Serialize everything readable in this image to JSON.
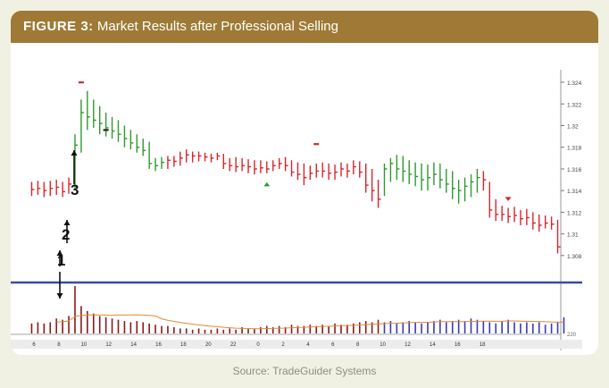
{
  "figure": {
    "label": "FIGURE 3:",
    "title": "Market Results after Professional Selling",
    "source": "Source: TradeGuider Systems"
  },
  "annotations": {
    "a1": "1",
    "a2": "2",
    "a3": "3"
  },
  "colors": {
    "header": "#9e7a36",
    "up": "#2e9a2e",
    "down": "#d9242c",
    "volume_high": "#8b1a1a",
    "volume_blue": "#3a3ab8",
    "divider": "#3b4aa8",
    "average": "#e08a3a"
  },
  "chart_data": {
    "type": "ohlc-bar",
    "y_ticks": [
      "1.308",
      "1.31",
      "1.312",
      "1.314",
      "1.316",
      "1.318",
      "1.32",
      "1.322",
      "1.324"
    ],
    "ylim": [
      1.3065,
      1.3245
    ],
    "x_ticks": [
      "6",
      "8",
      "10",
      "12",
      "14",
      "16",
      "18",
      "20",
      "22",
      "0",
      "2",
      "4",
      "6",
      "8",
      "10",
      "12",
      "14",
      "16",
      "18"
    ],
    "volume_tick": "220",
    "bars": [
      {
        "h": 1.3148,
        "l": 1.3135,
        "c": 1.3141,
        "d": "dn"
      },
      {
        "h": 1.3149,
        "l": 1.3136,
        "c": 1.3142,
        "d": "dn"
      },
      {
        "h": 1.3148,
        "l": 1.3134,
        "c": 1.314,
        "d": "dn"
      },
      {
        "h": 1.3149,
        "l": 1.3135,
        "c": 1.3142,
        "d": "dn"
      },
      {
        "h": 1.315,
        "l": 1.3136,
        "c": 1.3143,
        "d": "dn"
      },
      {
        "h": 1.3148,
        "l": 1.3134,
        "c": 1.3139,
        "d": "dn"
      },
      {
        "h": 1.3152,
        "l": 1.3137,
        "c": 1.3146,
        "d": "dn"
      },
      {
        "h": 1.3192,
        "l": 1.3142,
        "c": 1.3182,
        "d": "up"
      },
      {
        "h": 1.3224,
        "l": 1.3175,
        "c": 1.3212,
        "d": "up"
      },
      {
        "h": 1.3232,
        "l": 1.3196,
        "c": 1.3208,
        "d": "up"
      },
      {
        "h": 1.3224,
        "l": 1.3198,
        "c": 1.3205,
        "d": "up"
      },
      {
        "h": 1.3218,
        "l": 1.3192,
        "c": 1.3202,
        "d": "up"
      },
      {
        "h": 1.3212,
        "l": 1.319,
        "c": 1.3198,
        "d": "up"
      },
      {
        "h": 1.3208,
        "l": 1.3188,
        "c": 1.3195,
        "d": "up"
      },
      {
        "h": 1.3205,
        "l": 1.3185,
        "c": 1.3192,
        "d": "up"
      },
      {
        "h": 1.32,
        "l": 1.318,
        "c": 1.3188,
        "d": "up"
      },
      {
        "h": 1.3196,
        "l": 1.3178,
        "c": 1.3184,
        "d": "up"
      },
      {
        "h": 1.3192,
        "l": 1.3175,
        "c": 1.318,
        "d": "up"
      },
      {
        "h": 1.3188,
        "l": 1.3172,
        "c": 1.3177,
        "d": "up"
      },
      {
        "h": 1.3185,
        "l": 1.316,
        "c": 1.3165,
        "d": "up"
      },
      {
        "h": 1.317,
        "l": 1.3158,
        "c": 1.3163,
        "d": "up"
      },
      {
        "h": 1.3171,
        "l": 1.316,
        "c": 1.3166,
        "d": "up"
      },
      {
        "h": 1.3172,
        "l": 1.316,
        "c": 1.3168,
        "d": "dn"
      },
      {
        "h": 1.3172,
        "l": 1.3162,
        "c": 1.3167,
        "d": "dn"
      },
      {
        "h": 1.3176,
        "l": 1.3163,
        "c": 1.317,
        "d": "dn"
      },
      {
        "h": 1.3178,
        "l": 1.3166,
        "c": 1.3173,
        "d": "dn"
      },
      {
        "h": 1.3176,
        "l": 1.3166,
        "c": 1.3172,
        "d": "dn"
      },
      {
        "h": 1.3176,
        "l": 1.3167,
        "c": 1.3172,
        "d": "dn"
      },
      {
        "h": 1.3175,
        "l": 1.3167,
        "c": 1.3171,
        "d": "dn"
      },
      {
        "h": 1.3174,
        "l": 1.3166,
        "c": 1.317,
        "d": "dn"
      },
      {
        "h": 1.3175,
        "l": 1.3168,
        "c": 1.3172,
        "d": "dn"
      },
      {
        "h": 1.3174,
        "l": 1.316,
        "c": 1.3165,
        "d": "dn"
      },
      {
        "h": 1.317,
        "l": 1.3158,
        "c": 1.3163,
        "d": "dn"
      },
      {
        "h": 1.3171,
        "l": 1.3157,
        "c": 1.3162,
        "d": "dn"
      },
      {
        "h": 1.317,
        "l": 1.3158,
        "c": 1.3163,
        "d": "dn"
      },
      {
        "h": 1.3169,
        "l": 1.3156,
        "c": 1.3162,
        "d": "dn"
      },
      {
        "h": 1.3168,
        "l": 1.3155,
        "c": 1.316,
        "d": "dn"
      },
      {
        "h": 1.3168,
        "l": 1.3156,
        "c": 1.3161,
        "d": "dn"
      },
      {
        "h": 1.3167,
        "l": 1.3156,
        "c": 1.316,
        "d": "dn"
      },
      {
        "h": 1.3168,
        "l": 1.3158,
        "c": 1.3163,
        "d": "dn"
      },
      {
        "h": 1.317,
        "l": 1.316,
        "c": 1.3165,
        "d": "dn"
      },
      {
        "h": 1.3171,
        "l": 1.3158,
        "c": 1.3163,
        "d": "dn"
      },
      {
        "h": 1.3168,
        "l": 1.3153,
        "c": 1.3157,
        "d": "dn"
      },
      {
        "h": 1.3166,
        "l": 1.315,
        "c": 1.3155,
        "d": "dn"
      },
      {
        "h": 1.3165,
        "l": 1.3145,
        "c": 1.3152,
        "d": "dn"
      },
      {
        "h": 1.3163,
        "l": 1.315,
        "c": 1.3156,
        "d": "dn"
      },
      {
        "h": 1.3165,
        "l": 1.3152,
        "c": 1.3158,
        "d": "dn"
      },
      {
        "h": 1.3166,
        "l": 1.3152,
        "c": 1.3158,
        "d": "dn"
      },
      {
        "h": 1.3165,
        "l": 1.315,
        "c": 1.3156,
        "d": "dn"
      },
      {
        "h": 1.3164,
        "l": 1.315,
        "c": 1.3157,
        "d": "dn"
      },
      {
        "h": 1.3166,
        "l": 1.3153,
        "c": 1.316,
        "d": "dn"
      },
      {
        "h": 1.3165,
        "l": 1.3152,
        "c": 1.3158,
        "d": "dn"
      },
      {
        "h": 1.3168,
        "l": 1.3155,
        "c": 1.3162,
        "d": "dn"
      },
      {
        "h": 1.3167,
        "l": 1.3152,
        "c": 1.3157,
        "d": "dn"
      },
      {
        "h": 1.3165,
        "l": 1.3138,
        "c": 1.3145,
        "d": "dn"
      },
      {
        "h": 1.316,
        "l": 1.313,
        "c": 1.314,
        "d": "dn"
      },
      {
        "h": 1.315,
        "l": 1.3124,
        "c": 1.3132,
        "d": "dn"
      },
      {
        "h": 1.3165,
        "l": 1.3135,
        "c": 1.316,
        "d": "up"
      },
      {
        "h": 1.317,
        "l": 1.3148,
        "c": 1.3165,
        "d": "up"
      },
      {
        "h": 1.3173,
        "l": 1.315,
        "c": 1.316,
        "d": "up"
      },
      {
        "h": 1.3172,
        "l": 1.3148,
        "c": 1.3158,
        "d": "up"
      },
      {
        "h": 1.3168,
        "l": 1.3146,
        "c": 1.3155,
        "d": "up"
      },
      {
        "h": 1.3166,
        "l": 1.3144,
        "c": 1.3153,
        "d": "up"
      },
      {
        "h": 1.3165,
        "l": 1.314,
        "c": 1.315,
        "d": "up"
      },
      {
        "h": 1.3164,
        "l": 1.314,
        "c": 1.3152,
        "d": "up"
      },
      {
        "h": 1.3166,
        "l": 1.3145,
        "c": 1.3155,
        "d": "up"
      },
      {
        "h": 1.3165,
        "l": 1.3142,
        "c": 1.315,
        "d": "up"
      },
      {
        "h": 1.316,
        "l": 1.3138,
        "c": 1.3146,
        "d": "up"
      },
      {
        "h": 1.3158,
        "l": 1.3132,
        "c": 1.3142,
        "d": "up"
      },
      {
        "h": 1.315,
        "l": 1.3128,
        "c": 1.314,
        "d": "up"
      },
      {
        "h": 1.3152,
        "l": 1.313,
        "c": 1.3144,
        "d": "up"
      },
      {
        "h": 1.3155,
        "l": 1.3134,
        "c": 1.3148,
        "d": "up"
      },
      {
        "h": 1.316,
        "l": 1.3138,
        "c": 1.3152,
        "d": "up"
      },
      {
        "h": 1.3158,
        "l": 1.314,
        "c": 1.315,
        "d": "dn"
      },
      {
        "h": 1.3148,
        "l": 1.3115,
        "c": 1.3122,
        "d": "dn"
      },
      {
        "h": 1.3132,
        "l": 1.3112,
        "c": 1.3118,
        "d": "dn"
      },
      {
        "h": 1.3126,
        "l": 1.3112,
        "c": 1.3118,
        "d": "dn"
      },
      {
        "h": 1.3124,
        "l": 1.311,
        "c": 1.3116,
        "d": "dn"
      },
      {
        "h": 1.3125,
        "l": 1.3111,
        "c": 1.3117,
        "d": "dn"
      },
      {
        "h": 1.3122,
        "l": 1.3108,
        "c": 1.3114,
        "d": "dn"
      },
      {
        "h": 1.3123,
        "l": 1.3108,
        "c": 1.3115,
        "d": "dn"
      },
      {
        "h": 1.312,
        "l": 1.3104,
        "c": 1.311,
        "d": "dn"
      },
      {
        "h": 1.3118,
        "l": 1.3102,
        "c": 1.3108,
        "d": "dn"
      },
      {
        "h": 1.3117,
        "l": 1.3105,
        "c": 1.311,
        "d": "dn"
      },
      {
        "h": 1.3116,
        "l": 1.3104,
        "c": 1.3109,
        "d": "dn"
      },
      {
        "h": 1.3113,
        "l": 1.3082,
        "c": 1.3088,
        "d": "dn"
      }
    ],
    "volume": [
      8,
      9,
      8,
      9,
      12,
      11,
      14,
      38,
      22,
      18,
      16,
      14,
      13,
      12,
      11,
      10,
      9,
      10,
      9,
      8,
      7,
      6,
      6,
      5,
      4,
      4,
      3,
      4,
      3,
      3,
      4,
      3,
      4,
      3,
      5,
      4,
      4,
      5,
      6,
      5,
      6,
      5,
      7,
      6,
      6,
      7,
      6,
      7,
      6,
      8,
      7,
      7,
      8,
      9,
      10,
      9,
      11,
      9,
      10,
      8,
      9,
      10,
      9,
      8,
      9,
      10,
      11,
      9,
      10,
      11,
      10,
      12,
      11,
      10,
      9,
      8,
      10,
      11,
      9,
      8,
      9,
      8,
      9,
      7,
      8,
      9,
      13
    ],
    "volume_blue_from": 57,
    "volume_blue_to": 86,
    "markers": [
      {
        "bar": 8,
        "type": "dash",
        "y": 1.324,
        "color": "down"
      },
      {
        "bar": 12,
        "type": "dash",
        "y": 1.3196,
        "color": "dark"
      },
      {
        "bar": 46,
        "type": "dash",
        "y": 1.3183,
        "color": "down"
      },
      {
        "bar": 38,
        "type": "triangle-up",
        "y": 1.3146,
        "color": "up"
      },
      {
        "bar": 77,
        "type": "triangle-down",
        "y": 1.3132,
        "color": "down"
      }
    ]
  }
}
